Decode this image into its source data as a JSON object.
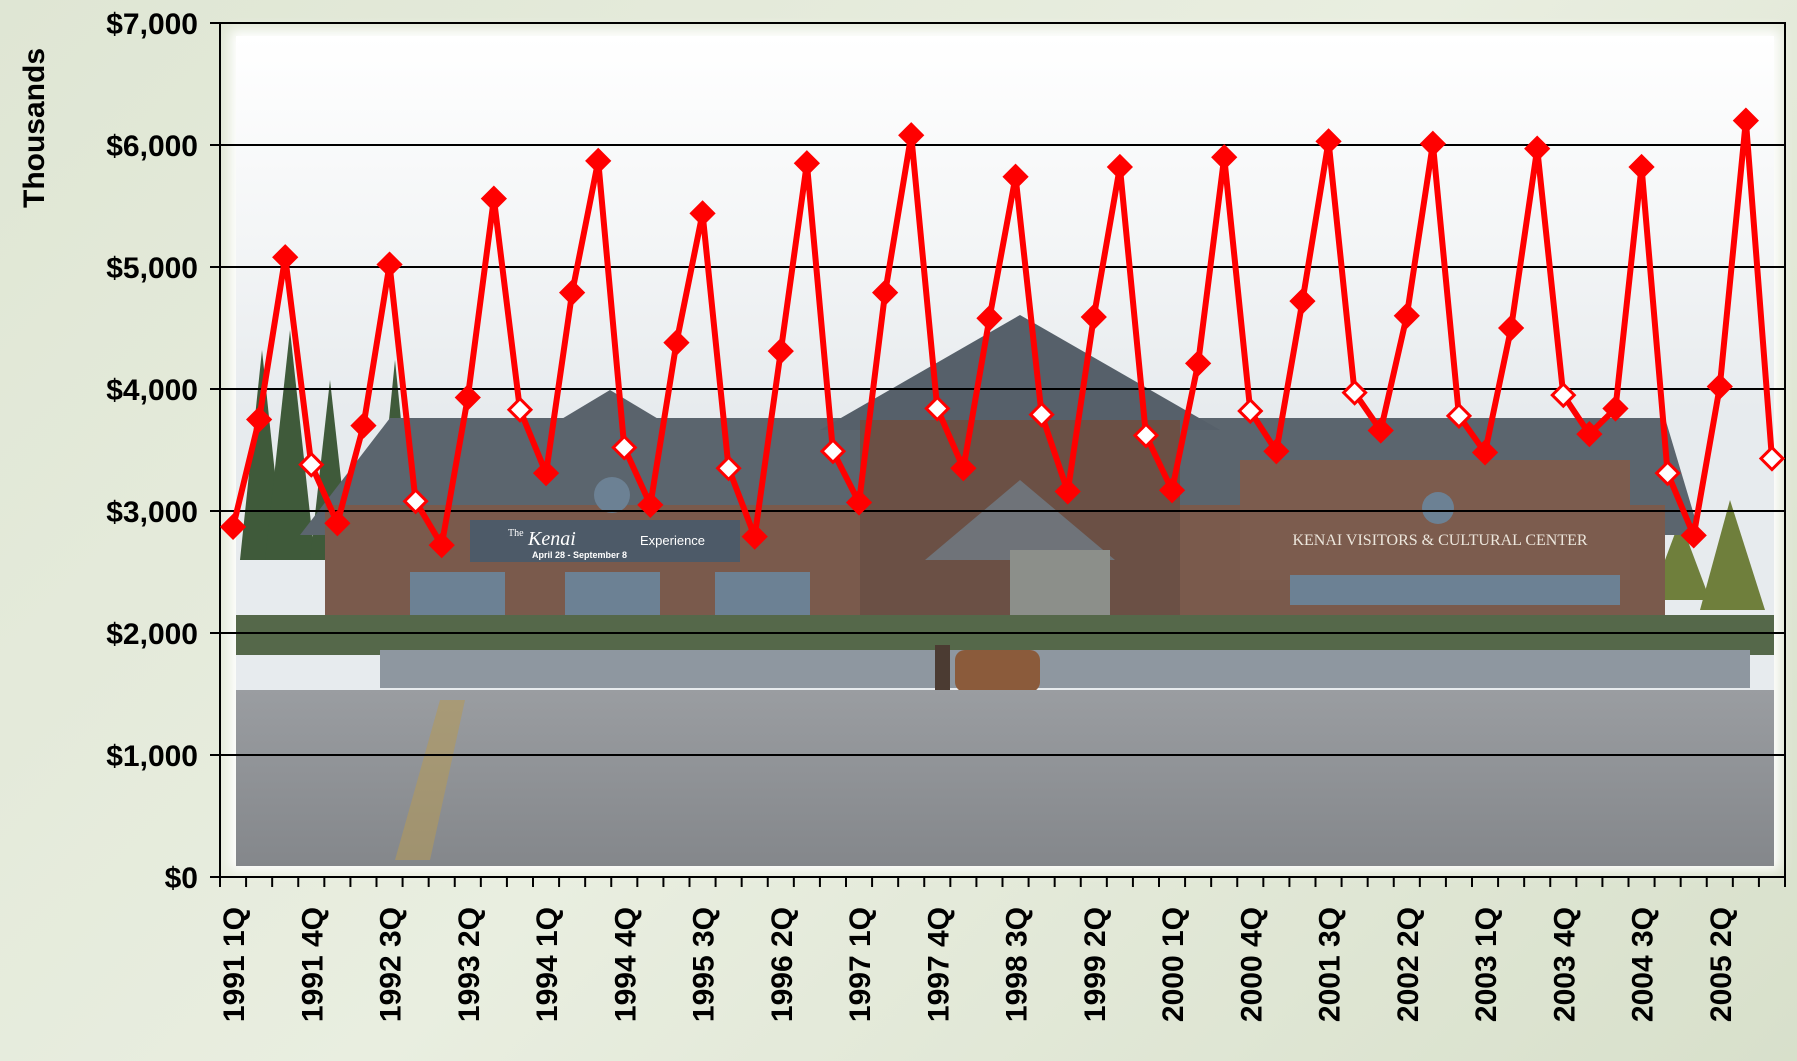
{
  "chart_data": {
    "type": "line",
    "ylabel": "Thousands",
    "ylim": [
      0,
      7000
    ],
    "yticks": [
      "$0",
      "$1,000",
      "$2,000",
      "$3,000",
      "$4,000",
      "$5,000",
      "$6,000",
      "$7,000"
    ],
    "grid": true,
    "background": "photo of Kenai Visitors & Cultural Center",
    "photo_text": {
      "sign_left_title": "Kenai",
      "sign_left_prefix": "The",
      "sign_left_sub": "Experience",
      "sign_left_dates": "April 28 - September 8",
      "sign_right": "KENAI VISITORS & CULTURAL CENTER"
    },
    "x_tick_labels": [
      "1991 1Q",
      "1991 4Q",
      "1992 3Q",
      "1993 2Q",
      "1994 1Q",
      "1994 4Q",
      "1995 3Q",
      "1996 2Q",
      "1997 1Q",
      "1997 4Q",
      "1998 3Q",
      "1999 2Q",
      "2000 1Q",
      "2000 4Q",
      "2001 3Q",
      "2002 2Q",
      "2003 1Q",
      "2003 4Q",
      "2004 3Q",
      "2005 2Q"
    ],
    "series": [
      {
        "color": "#ff0000",
        "x": [
          "1991 1Q",
          "1991 2Q",
          "1991 3Q",
          "1991 4Q",
          "1992 1Q",
          "1992 2Q",
          "1992 3Q",
          "1992 4Q",
          "1993 1Q",
          "1993 2Q",
          "1993 3Q",
          "1993 4Q",
          "1994 1Q",
          "1994 2Q",
          "1994 3Q",
          "1994 4Q",
          "1995 1Q",
          "1995 2Q",
          "1995 3Q",
          "1995 4Q",
          "1996 1Q",
          "1996 2Q",
          "1996 3Q",
          "1996 4Q",
          "1997 1Q",
          "1997 2Q",
          "1997 3Q",
          "1997 4Q",
          "1998 1Q",
          "1998 2Q",
          "1998 3Q",
          "1998 4Q",
          "1999 1Q",
          "1999 2Q",
          "1999 3Q",
          "1999 4Q",
          "2000 1Q",
          "2000 2Q",
          "2000 3Q",
          "2000 4Q",
          "2001 1Q",
          "2001 2Q",
          "2001 3Q",
          "2001 4Q",
          "2002 1Q",
          "2002 2Q",
          "2002 3Q",
          "2002 4Q",
          "2003 1Q",
          "2003 2Q",
          "2003 3Q",
          "2003 4Q",
          "2004 1Q",
          "2004 2Q",
          "2004 3Q",
          "2004 4Q",
          "2005 1Q",
          "2005 2Q",
          "2005 3Q",
          "2005 4Q"
        ],
        "values": [
          2870,
          3750,
          5080,
          3380,
          2900,
          3700,
          5020,
          3080,
          2720,
          3930,
          5560,
          3830,
          3310,
          4790,
          5870,
          3520,
          3050,
          4380,
          5440,
          3350,
          2790,
          4310,
          5850,
          3490,
          3070,
          4790,
          6080,
          3840,
          3350,
          4580,
          5740,
          3790,
          3160,
          4590,
          5820,
          3620,
          3170,
          4210,
          5900,
          3820,
          3490,
          4720,
          6030,
          3970,
          3660,
          4600,
          6010,
          3780,
          3480,
          4500,
          5970,
          3950,
          3630,
          3840,
          5820,
          3310,
          2800,
          4020,
          6200,
          3430
        ],
        "hollow_markers": [
          3,
          7,
          11,
          15,
          19,
          23,
          27,
          31,
          35,
          39,
          43,
          47,
          51,
          55,
          59
        ]
      }
    ]
  }
}
